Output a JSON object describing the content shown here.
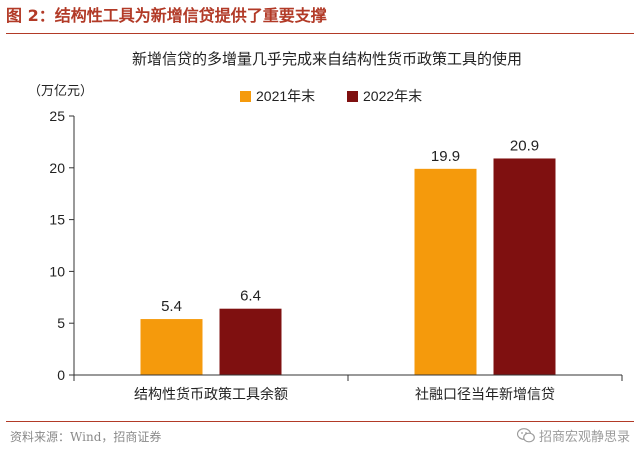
{
  "figure": {
    "label": "图 2：结构性工具为新增信贷提供了重要支撑",
    "source": "资料来源：Wind，招商证券",
    "watermark": "招商宏观静思录",
    "watermark_icon": "wechat-icon"
  },
  "chart_data": {
    "type": "bar",
    "title": "新增信贷的多增量几乎完成来自结构性货币政策工具的使用",
    "ylabel": "（万亿元）",
    "xlabel": "",
    "categories": [
      "结构性货币政策工具余额",
      "社融口径当年新增信贷"
    ],
    "series": [
      {
        "name": "2021年末",
        "values": [
          5.4,
          19.9
        ],
        "color": "#f59a0c"
      },
      {
        "name": "2022年末",
        "values": [
          6.4,
          20.9
        ],
        "color": "#7f1010"
      }
    ],
    "ylim": [
      0,
      25
    ],
    "yticks": [
      0,
      5,
      10,
      15,
      20,
      25
    ],
    "grid": false,
    "legend_position": "top"
  }
}
